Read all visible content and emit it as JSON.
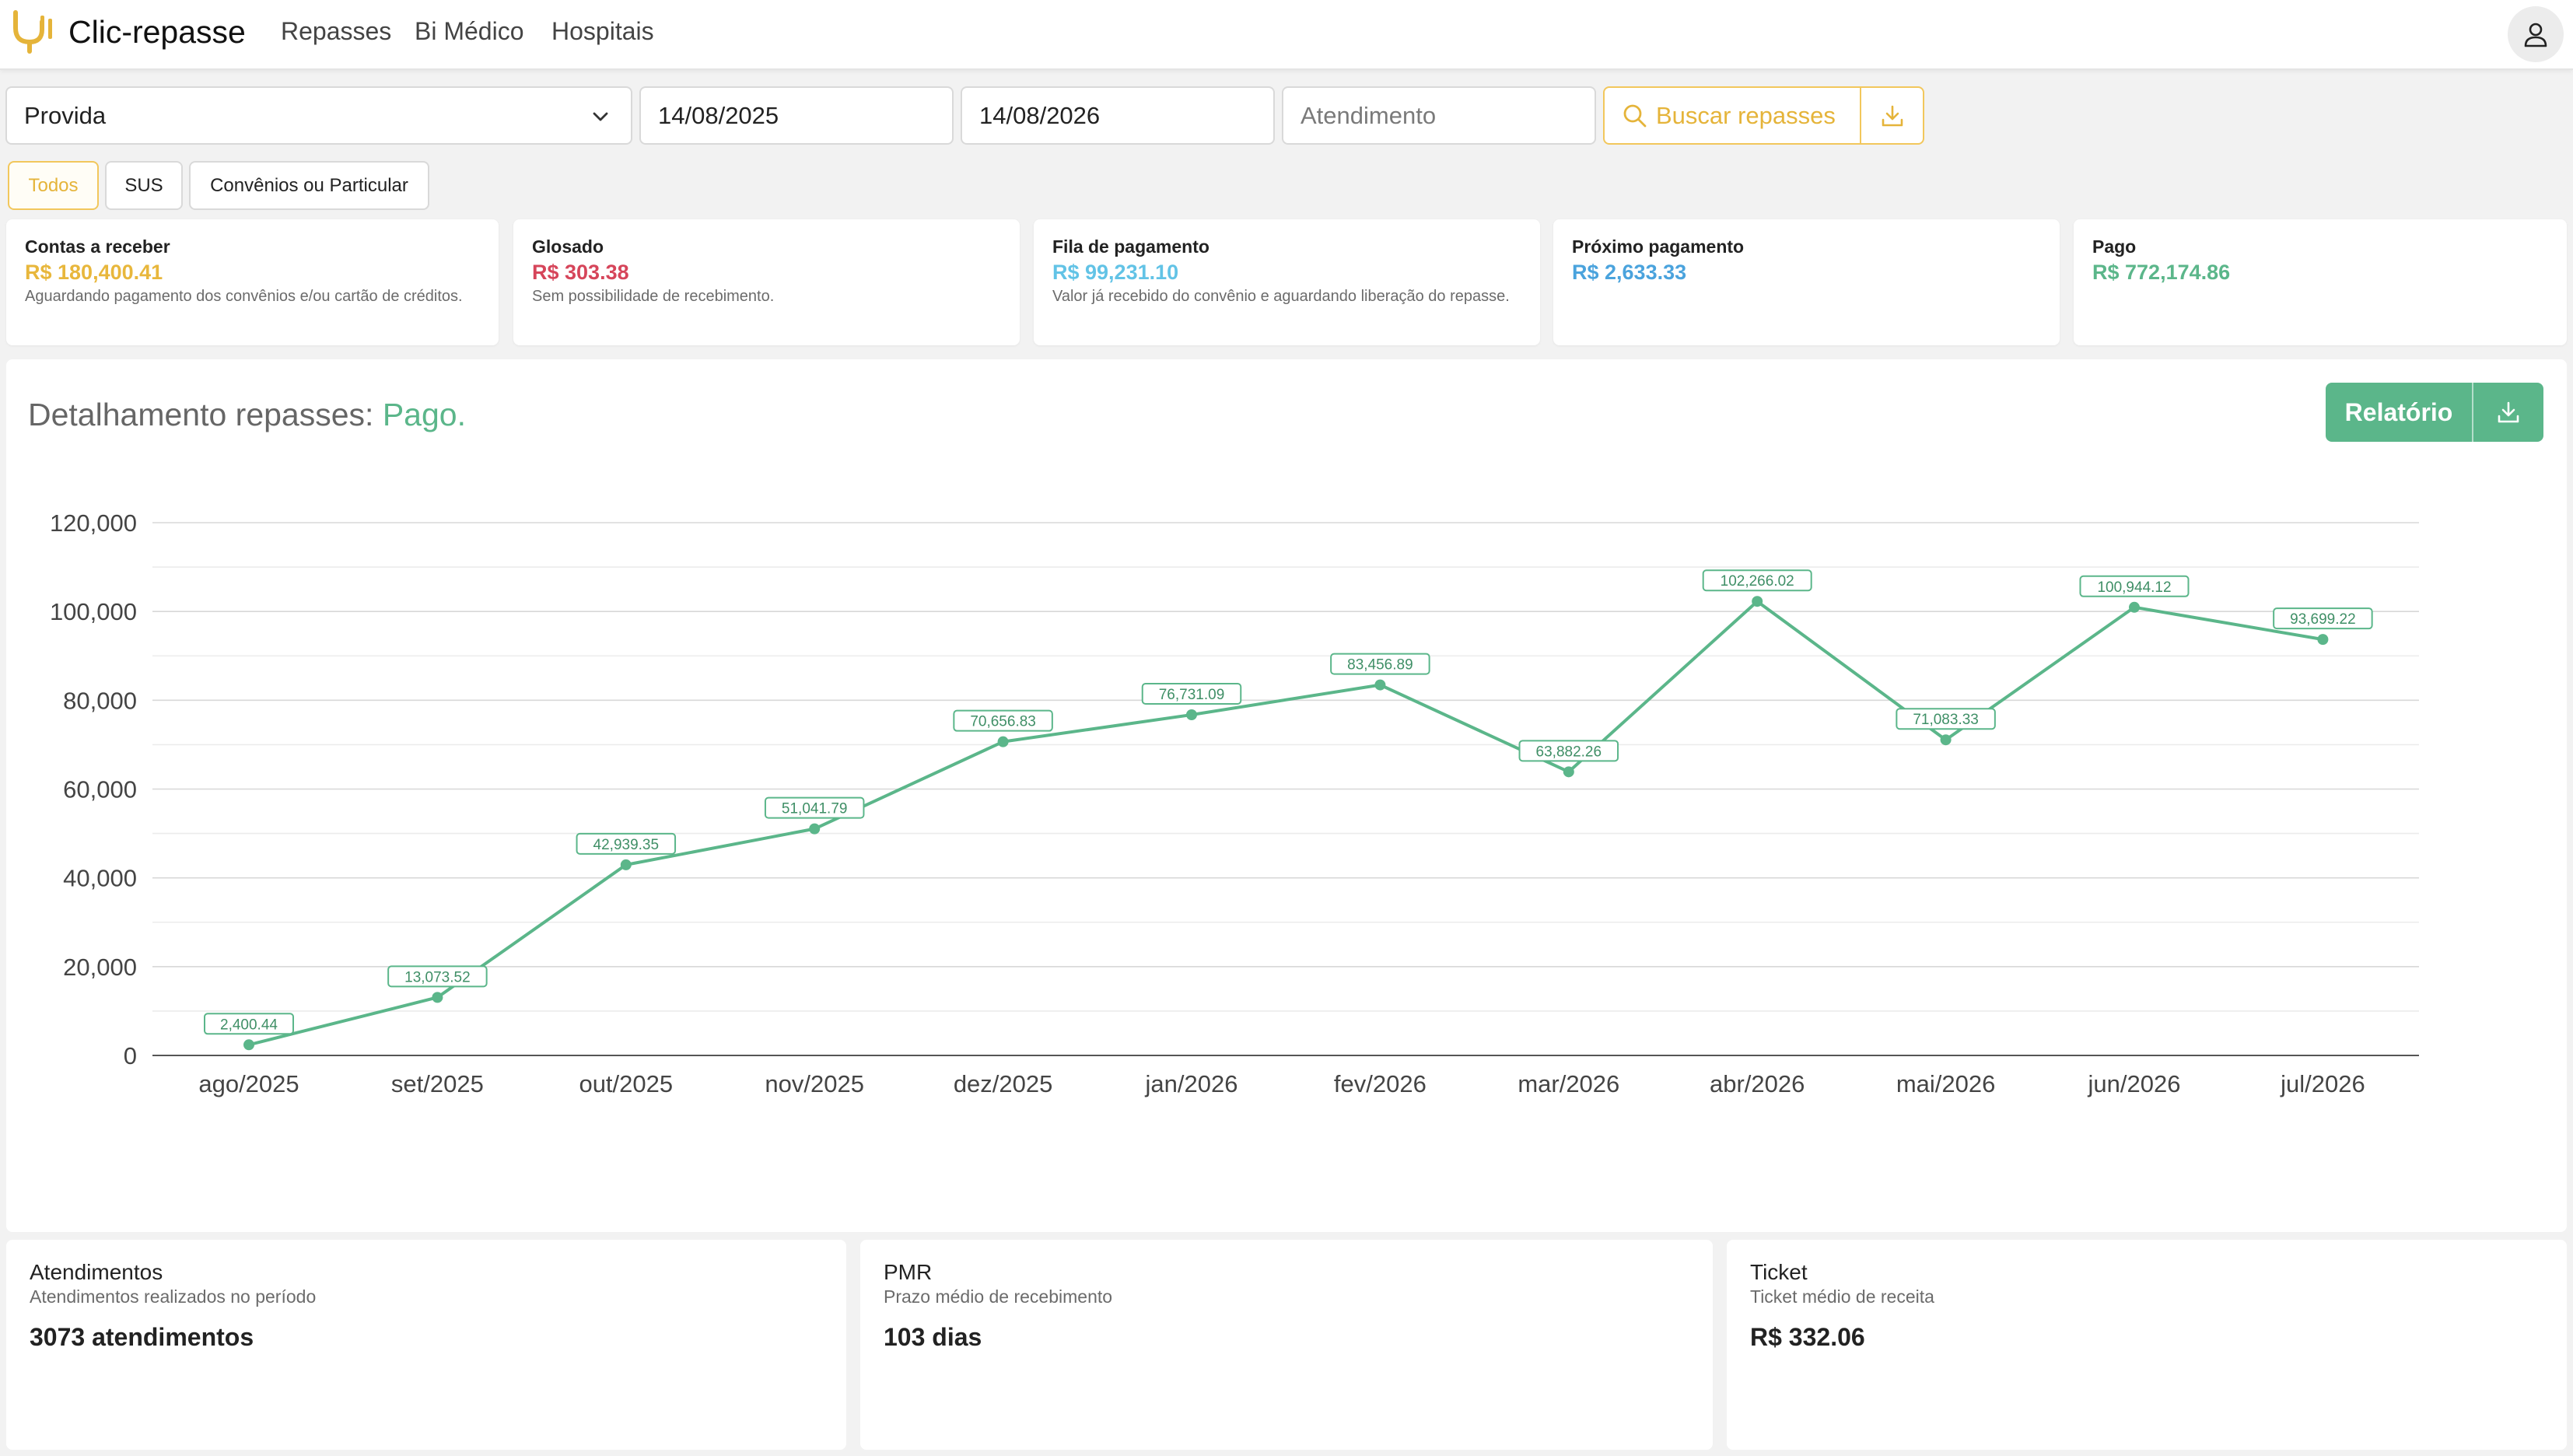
{
  "header": {
    "brand": "Clic-repasse",
    "nav": [
      "Repasses",
      "Bi Médico",
      "Hospitais"
    ],
    "icons": {
      "logo": "stethoscope-icon",
      "user": "user-icon"
    }
  },
  "filters": {
    "hospital": "Provida",
    "date_start": "14/08/2025",
    "date_end": "14/08/2026",
    "atendimento_placeholder": "Atendimento",
    "search_label": "Buscar repasses"
  },
  "tabs": [
    "Todos",
    "SUS",
    "Convênios ou Particular"
  ],
  "active_tab": "Todos",
  "summary": [
    {
      "title": "Contas a receber",
      "value": "R$ 180,400.41",
      "desc": "Aguardando pagamento dos convênios e/ou cartão de créditos.",
      "color": "#e8b73c"
    },
    {
      "title": "Glosado",
      "value": "R$ 303.38",
      "desc": "Sem possibilidade de recebimento.",
      "color": "#d6455a"
    },
    {
      "title": "Fila de pagamento",
      "value": "R$ 99,231.10",
      "desc": "Valor já recebido do convênio e aguardando liberação do repasse.",
      "color": "#62c3e6"
    },
    {
      "title": "Próximo pagamento",
      "value": "R$ 2,633.33",
      "desc": "",
      "color": "#4aa3dd"
    },
    {
      "title": "Pago",
      "value": "R$ 772,174.86",
      "desc": "",
      "color": "#5bb68a"
    }
  ],
  "detail": {
    "title": "Detalhamento repasses:",
    "status": "Pago.",
    "report_label": "Relatório"
  },
  "chart_data": {
    "type": "line",
    "categories": [
      "ago/2025",
      "set/2025",
      "out/2025",
      "nov/2025",
      "dez/2025",
      "jan/2026",
      "fev/2026",
      "mar/2026",
      "abr/2026",
      "mai/2026",
      "jun/2026",
      "jul/2026"
    ],
    "values": [
      2400.44,
      13073.52,
      42939.35,
      51041.79,
      70656.83,
      76731.09,
      83456.89,
      63882.26,
      102266.02,
      71083.33,
      100944.12,
      93699.22
    ],
    "labels": [
      "2,400.44",
      "13,073.52",
      "42,939.35",
      "51,041.79",
      "70,656.83",
      "76,731.09",
      "83,456.89",
      "63,882.26",
      "102,266.02",
      "71,083.33",
      "100,944.12",
      "93,699.22"
    ],
    "ylim": [
      0,
      120000
    ],
    "yticks": [
      0,
      20000,
      40000,
      60000,
      80000,
      100000,
      120000
    ],
    "ytick_labels": [
      "0",
      "20,000",
      "40,000",
      "60,000",
      "80,000",
      "100,000",
      "120,000"
    ],
    "grid": true,
    "color": "#5bb68a"
  },
  "kpis": [
    {
      "title": "Atendimentos",
      "subtitle": "Atendimentos realizados no período",
      "value": "3073 atendimentos"
    },
    {
      "title": "PMR",
      "subtitle": "Prazo médio de recebimento",
      "value": "103 dias"
    },
    {
      "title": "Ticket",
      "subtitle": "Ticket médio de receita",
      "value": "R$ 332.06"
    }
  ]
}
